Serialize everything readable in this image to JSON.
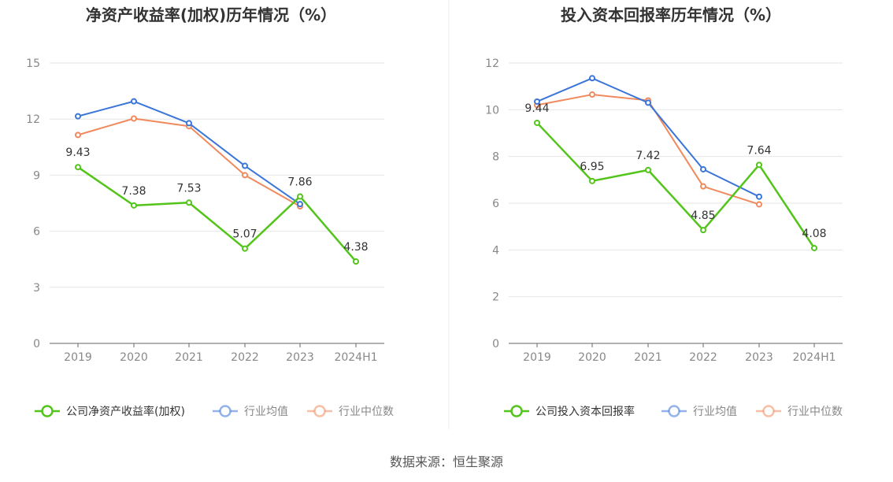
{
  "chart_data": [
    {
      "type": "line",
      "title": "净资产收益率(加权)历年情况（%）",
      "categories": [
        "2019",
        "2020",
        "2021",
        "2022",
        "2023",
        "2024H1"
      ],
      "ylim": [
        0,
        15
      ],
      "yticks": [
        "0",
        "3",
        "6",
        "9",
        "12",
        "15"
      ],
      "grid": true,
      "legend_position": "bottom",
      "series": [
        {
          "name": "公司净资产收益率(加权)",
          "color": "#52c41a",
          "values": [
            9.43,
            7.38,
            7.53,
            5.07,
            7.86,
            4.38
          ],
          "labels": [
            "9.43",
            "7.38",
            "7.53",
            "5.07",
            "7.86",
            "4.38"
          ]
        },
        {
          "name": "行业均值",
          "color": "#3a75d9",
          "values": [
            12.15,
            12.95,
            11.78,
            9.5,
            7.45,
            null
          ]
        },
        {
          "name": "行业中位数",
          "color": "#f08a5d",
          "values": [
            11.15,
            12.03,
            11.62,
            9.0,
            7.33,
            null
          ]
        }
      ]
    },
    {
      "type": "line",
      "title": "投入资本回报率历年情况（%）",
      "categories": [
        "2019",
        "2020",
        "2021",
        "2022",
        "2023",
        "2024H1"
      ],
      "ylim": [
        0,
        12
      ],
      "yticks": [
        "0",
        "2",
        "4",
        "6",
        "8",
        "10",
        "12"
      ],
      "grid": true,
      "legend_position": "bottom",
      "series": [
        {
          "name": "公司投入资本回报率",
          "color": "#52c41a",
          "values": [
            9.44,
            6.95,
            7.42,
            4.85,
            7.64,
            4.08
          ],
          "labels": [
            "9.44",
            "6.95",
            "7.42",
            "4.85",
            "7.64",
            "4.08"
          ]
        },
        {
          "name": "行业均值",
          "color": "#3a75d9",
          "values": [
            10.35,
            11.35,
            10.3,
            7.45,
            6.28,
            null
          ]
        },
        {
          "name": "行业中位数",
          "color": "#f08a5d",
          "values": [
            10.2,
            10.65,
            10.4,
            6.72,
            5.95,
            null
          ]
        }
      ]
    }
  ],
  "source": "数据来源：恒生聚源"
}
